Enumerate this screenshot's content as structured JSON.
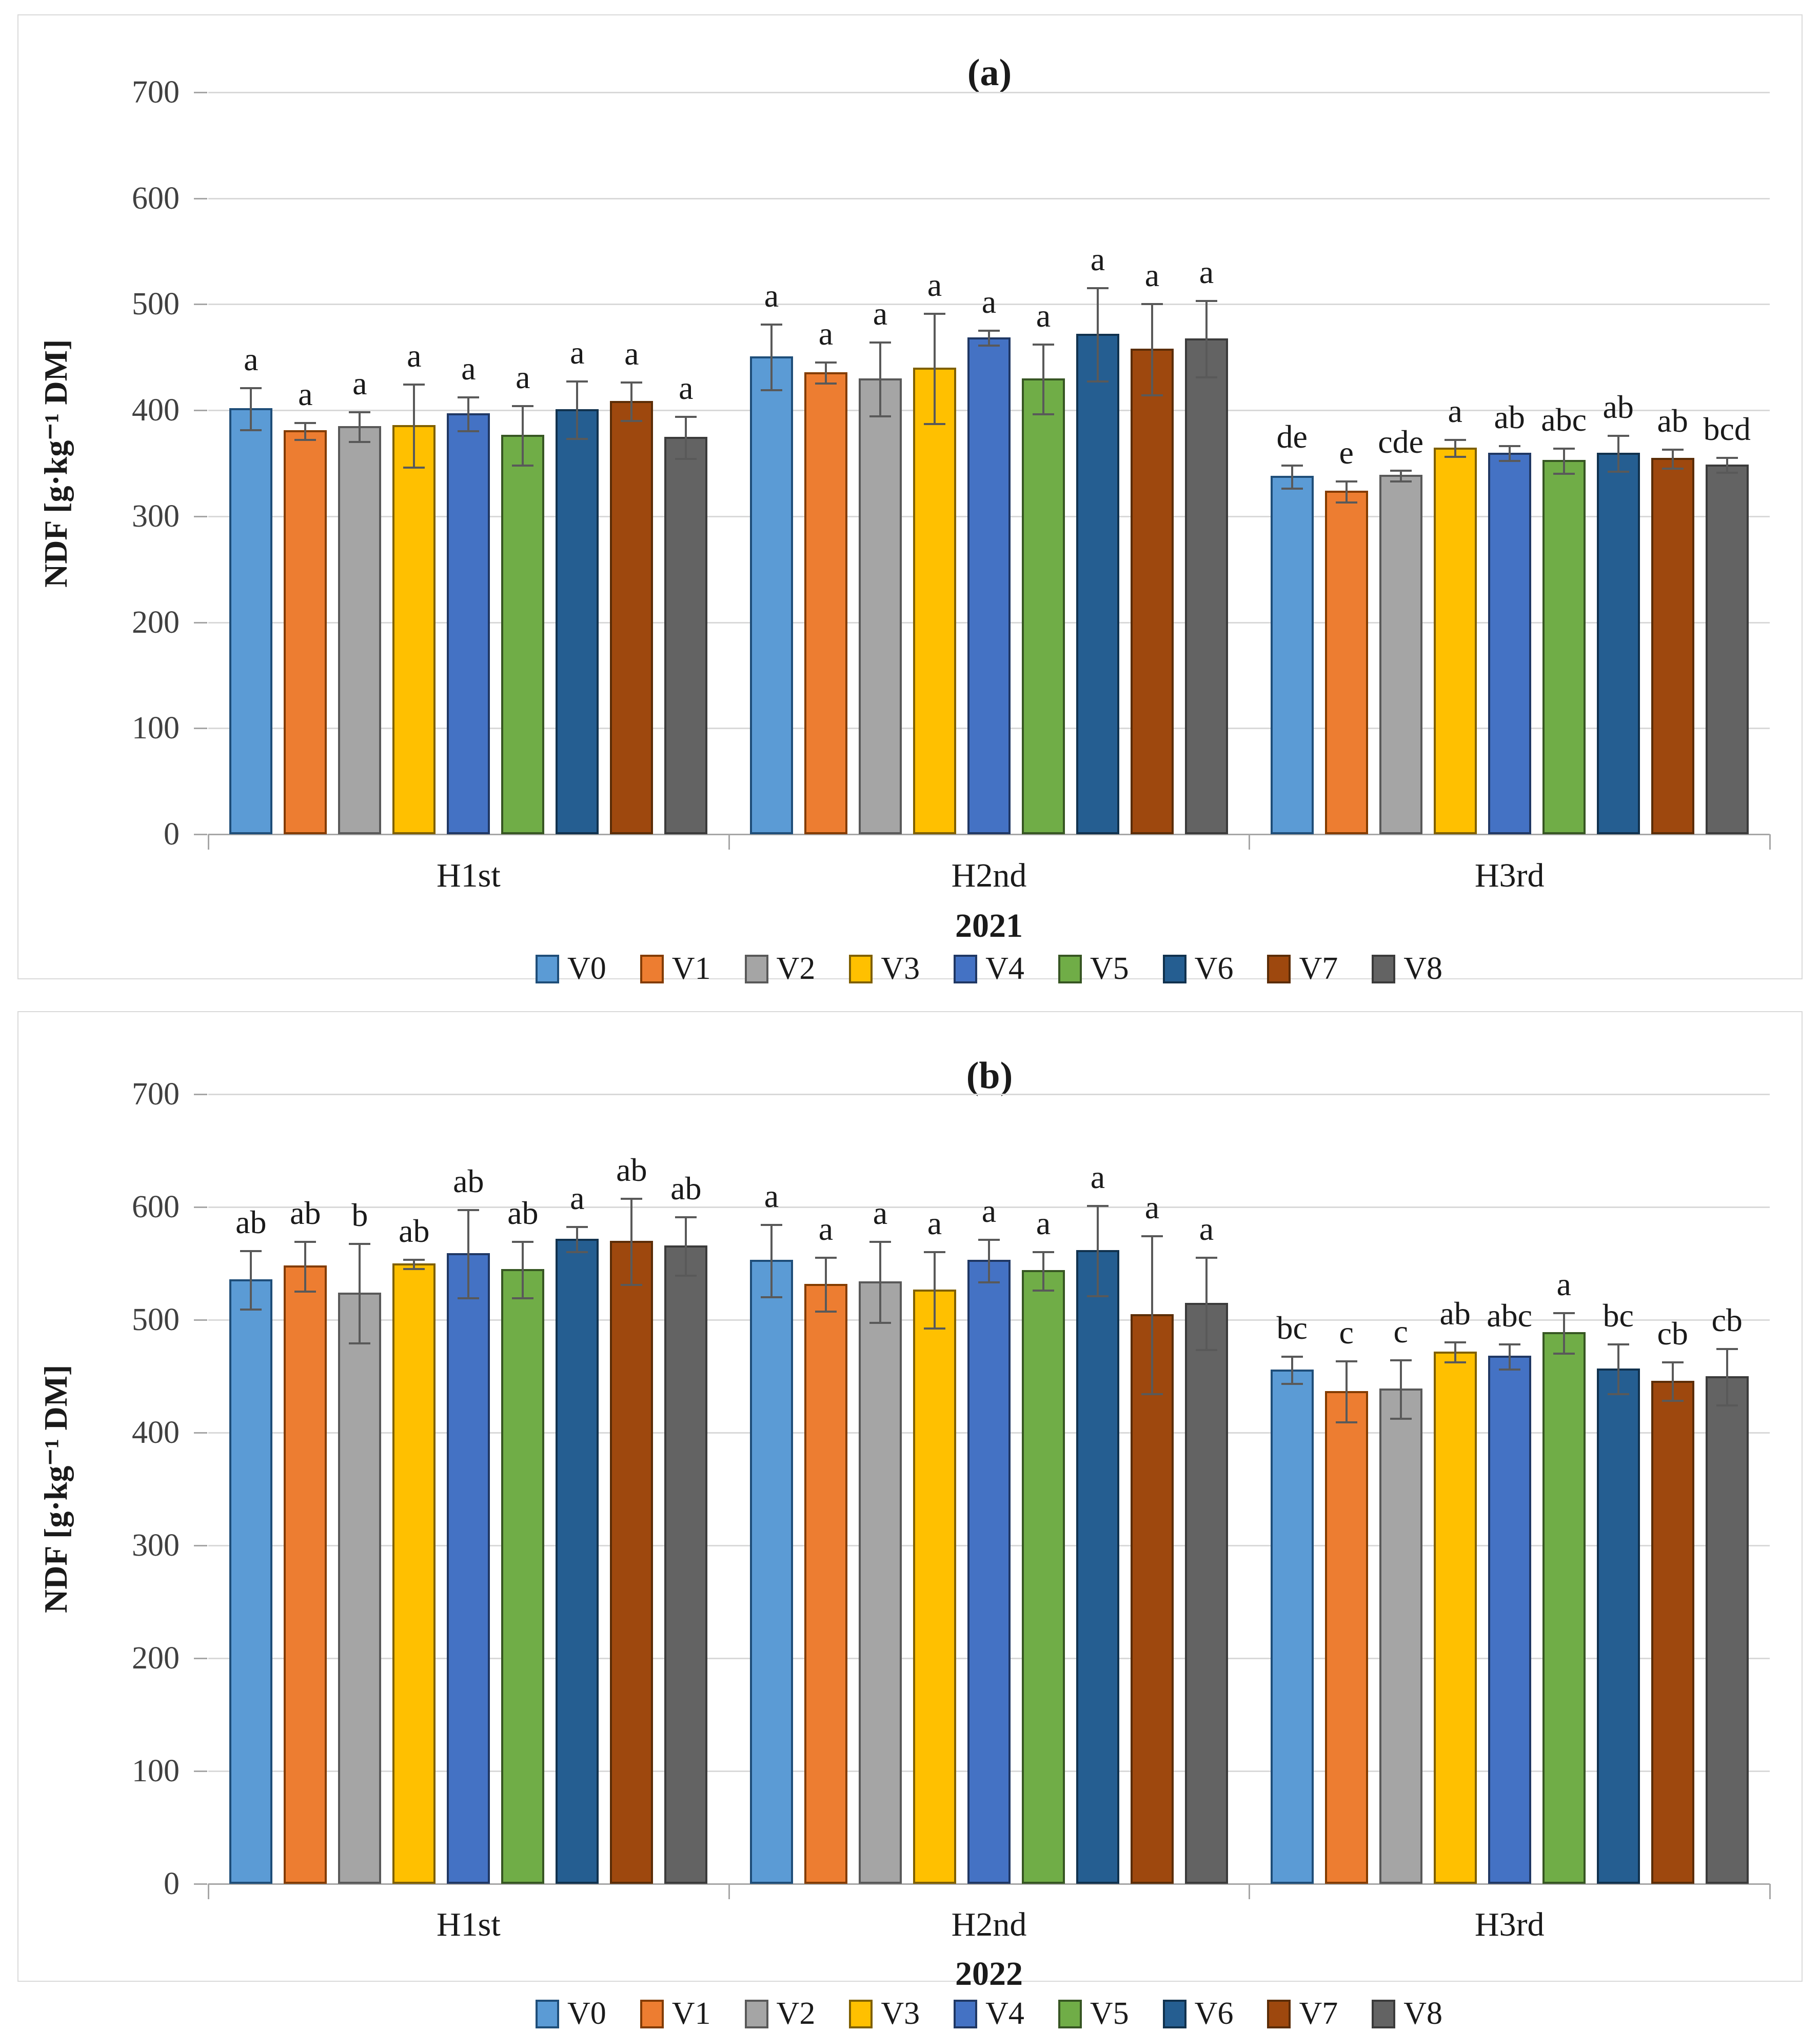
{
  "figure": {
    "ylabel": "NDF [g·kg⁻¹ DM]"
  },
  "chart_data": [
    {
      "type": "bar",
      "title": "(a)",
      "year_label": "2021",
      "ylabel": "NDF [g·kg⁻¹ DM]",
      "categories": [
        "H1st",
        "H2nd",
        "H3rd"
      ],
      "ylim": [
        0,
        700
      ],
      "yticks": [
        700,
        600,
        500,
        400,
        300,
        200,
        100,
        0
      ],
      "grid": true,
      "legend_position": "bottom",
      "series": [
        {
          "name": "V0",
          "color": "#5B9BD5",
          "border": "#1F4E79",
          "values": [
            402,
            451,
            338
          ],
          "errors": [
            20,
            31,
            11
          ],
          "letters": [
            "a",
            "a",
            "de"
          ]
        },
        {
          "name": "V1",
          "color": "#ED7D31",
          "border": "#833C00",
          "values": [
            381,
            436,
            324
          ],
          "errors": [
            8,
            10,
            10
          ],
          "letters": [
            "a",
            "a",
            "e"
          ]
        },
        {
          "name": "V2",
          "color": "#A5A5A5",
          "border": "#595959",
          "values": [
            385,
            430,
            339
          ],
          "errors": [
            14,
            35,
            5
          ],
          "letters": [
            "a",
            "a",
            "cde"
          ]
        },
        {
          "name": "V3",
          "color": "#FFC000",
          "border": "#7F6000",
          "values": [
            386,
            440,
            365
          ],
          "errors": [
            39,
            52,
            8
          ],
          "letters": [
            "a",
            "a",
            "a"
          ]
        },
        {
          "name": "V4",
          "color": "#4472C4",
          "border": "#203864",
          "values": [
            397,
            469,
            360
          ],
          "errors": [
            16,
            7,
            7
          ],
          "letters": [
            "a",
            "a",
            "ab"
          ]
        },
        {
          "name": "V5",
          "color": "#70AD47",
          "border": "#375623",
          "values": [
            377,
            430,
            353
          ],
          "errors": [
            28,
            33,
            12
          ],
          "letters": [
            "a",
            "a",
            "abc"
          ]
        },
        {
          "name": "V6",
          "color": "#255E91",
          "border": "#11324E",
          "values": [
            401,
            472,
            360
          ],
          "errors": [
            27,
            44,
            17
          ],
          "letters": [
            "a",
            "a",
            "ab"
          ]
        },
        {
          "name": "V7",
          "color": "#9E480E",
          "border": "#5B2D07",
          "values": [
            409,
            458,
            355
          ],
          "errors": [
            18,
            43,
            9
          ],
          "letters": [
            "a",
            "a",
            "ab"
          ]
        },
        {
          "name": "V8",
          "color": "#636363",
          "border": "#3B3B3B",
          "values": [
            375,
            468,
            349
          ],
          "errors": [
            20,
            36,
            7
          ],
          "letters": [
            "a",
            "a",
            "bcd"
          ]
        }
      ]
    },
    {
      "type": "bar",
      "title": "(b)",
      "year_label": "2022",
      "ylabel": "NDF [g·kg⁻¹ DM]",
      "categories": [
        "H1st",
        "H2nd",
        "H3rd"
      ],
      "ylim": [
        0,
        700
      ],
      "yticks": [
        700,
        600,
        500,
        400,
        300,
        200,
        100,
        0
      ],
      "grid": true,
      "legend_position": "bottom",
      "series": [
        {
          "name": "V0",
          "color": "#5B9BD5",
          "border": "#1F4E79",
          "values": [
            536,
            553,
            456
          ],
          "errors": [
            26,
            32,
            12
          ],
          "letters": [
            "ab",
            "a",
            "bc"
          ]
        },
        {
          "name": "V1",
          "color": "#ED7D31",
          "border": "#833C00",
          "values": [
            548,
            532,
            437
          ],
          "errors": [
            22,
            24,
            27
          ],
          "letters": [
            "ab",
            "a",
            "c"
          ]
        },
        {
          "name": "V2",
          "color": "#A5A5A5",
          "border": "#595959",
          "values": [
            524,
            534,
            439
          ],
          "errors": [
            44,
            36,
            26
          ],
          "letters": [
            "b",
            "a",
            "c"
          ]
        },
        {
          "name": "V3",
          "color": "#FFC000",
          "border": "#7F6000",
          "values": [
            550,
            527,
            472
          ],
          "errors": [
            4,
            34,
            9
          ],
          "letters": [
            "ab",
            "a",
            "ab"
          ]
        },
        {
          "name": "V4",
          "color": "#4472C4",
          "border": "#203864",
          "values": [
            559,
            553,
            468
          ],
          "errors": [
            39,
            19,
            11
          ],
          "letters": [
            "ab",
            "a",
            "abc"
          ]
        },
        {
          "name": "V5",
          "color": "#70AD47",
          "border": "#375623",
          "values": [
            545,
            544,
            489
          ],
          "errors": [
            25,
            17,
            18
          ],
          "letters": [
            "ab",
            "a",
            "a"
          ]
        },
        {
          "name": "V6",
          "color": "#255E91",
          "border": "#11324E",
          "values": [
            572,
            562,
            457
          ],
          "errors": [
            11,
            40,
            22
          ],
          "letters": [
            "a",
            "a",
            "bc"
          ]
        },
        {
          "name": "V7",
          "color": "#9E480E",
          "border": "#5B2D07",
          "values": [
            570,
            505,
            446
          ],
          "errors": [
            38,
            70,
            17
          ],
          "letters": [
            "ab",
            "a",
            "cb"
          ]
        },
        {
          "name": "V8",
          "color": "#636363",
          "border": "#3B3B3B",
          "values": [
            566,
            515,
            450
          ],
          "errors": [
            26,
            41,
            25
          ],
          "letters": [
            "ab",
            "a",
            "cb"
          ]
        }
      ]
    }
  ]
}
